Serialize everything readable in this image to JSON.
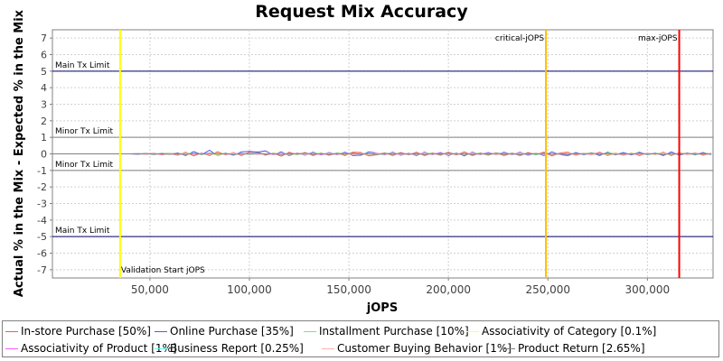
{
  "chart_data": {
    "type": "line",
    "title": "Request Mix Accuracy",
    "xlabel": "jOPS",
    "ylabel": "Actual % in the Mix - Expected % in the Mix",
    "xlim": [
      1000,
      333000
    ],
    "ylim": [
      -7.5,
      7.5
    ],
    "x_ticks": [
      {
        "value": 50000,
        "label": "50,000"
      },
      {
        "value": 100000,
        "label": "100,000"
      },
      {
        "value": 150000,
        "label": "150,000"
      },
      {
        "value": 200000,
        "label": "200,000"
      },
      {
        "value": 250000,
        "label": "250,000"
      },
      {
        "value": 300000,
        "label": "300,000"
      }
    ],
    "y_ticks": [
      {
        "value": 7,
        "label": "7"
      },
      {
        "value": 6,
        "label": "6"
      },
      {
        "value": 5,
        "label": "5"
      },
      {
        "value": 4,
        "label": "4"
      },
      {
        "value": 3,
        "label": "3"
      },
      {
        "value": 2,
        "label": "2"
      },
      {
        "value": 1,
        "label": "1"
      },
      {
        "value": 0,
        "label": "0"
      },
      {
        "value": -1,
        "label": "-1"
      },
      {
        "value": -2,
        "label": "-2"
      },
      {
        "value": -3,
        "label": "-3"
      },
      {
        "value": -4,
        "label": "-4"
      },
      {
        "value": -5,
        "label": "-5"
      },
      {
        "value": -6,
        "label": "-6"
      },
      {
        "value": -7,
        "label": "-7"
      }
    ],
    "grid": true,
    "legend_position": "bottom",
    "horizontal_markers": [
      {
        "value": 5,
        "label": "Main Tx Limit",
        "color": "#000066"
      },
      {
        "value": 1,
        "label": "Minor Tx Limit",
        "color": "#808080"
      },
      {
        "value": -1,
        "label": "Minor Tx Limit",
        "color": "#808080"
      },
      {
        "value": -5,
        "label": "Main Tx Limit",
        "color": "#000066"
      }
    ],
    "vertical_markers": [
      {
        "value": 35000,
        "label": "Validation Start jOPS",
        "color": "#ffff00"
      },
      {
        "value": 249000,
        "label": "critical-jOPS",
        "color": "#ffc000"
      },
      {
        "value": 316000,
        "label": "max-jOPS",
        "color": "#ff0000"
      }
    ],
    "x": [
      1000,
      4000,
      7000,
      10000,
      13000,
      16000,
      19000,
      22000,
      25000,
      28000,
      31000,
      34000,
      37000,
      40000,
      44000,
      48000,
      52000,
      56000,
      60000,
      64000,
      68000,
      72000,
      76000,
      80000,
      84000,
      88000,
      92000,
      96000,
      100000,
      104000,
      108000,
      112000,
      116000,
      120000,
      124000,
      128000,
      132000,
      136000,
      140000,
      144000,
      148000,
      152000,
      156000,
      160000,
      164000,
      168000,
      172000,
      176000,
      180000,
      184000,
      188000,
      192000,
      196000,
      200000,
      204000,
      208000,
      212000,
      216000,
      220000,
      224000,
      228000,
      232000,
      236000,
      240000,
      244000,
      248000,
      252000,
      256000,
      260000,
      264000,
      268000,
      272000,
      276000,
      280000,
      284000,
      288000,
      292000,
      296000,
      300000,
      304000,
      308000,
      312000,
      316000,
      320000,
      324000,
      328000,
      332000
    ],
    "series": [
      {
        "name": "In-store Purchase [50%]",
        "color": "#ff5555",
        "values": [
          0,
          0,
          0,
          0,
          0,
          0,
          0,
          0,
          0,
          0,
          0,
          0,
          0,
          0,
          0.02,
          -0.03,
          0.04,
          -0.05,
          0.03,
          -0.08,
          0.1,
          -0.12,
          0.05,
          -0.1,
          0.13,
          -0.06,
          0.08,
          -0.1,
          0.1,
          0.12,
          -0.08,
          0.05,
          -0.14,
          0.1,
          -0.05,
          0.08,
          -0.1,
          0.06,
          -0.08,
          0.05,
          -0.1,
          0.1,
          0.08,
          -0.12,
          -0.05,
          0.06,
          -0.1,
          0.08,
          -0.05,
          0.1,
          -0.1,
          0.05,
          -0.08,
          0.1,
          -0.06,
          0.12,
          -0.1,
          0.05,
          -0.08,
          0.06,
          -0.1,
          0.05,
          -0.1,
          0.08,
          -0.05,
          0.1,
          -0.12,
          0.05,
          0.1,
          -0.08,
          0.05,
          -0.06,
          0.1,
          -0.1,
          0.05,
          -0.08,
          0.06,
          -0.1,
          0.05,
          -0.05,
          0.1,
          -0.1,
          0.08,
          -0.05,
          0.06,
          -0.08,
          0.05
        ]
      },
      {
        "name": "Online Purchase [35%]",
        "color": "#5555ff",
        "values": [
          0,
          0,
          0,
          0,
          0,
          0,
          0,
          0,
          0,
          0,
          0,
          0,
          0,
          0,
          -0.02,
          0.03,
          -0.04,
          0.05,
          -0.03,
          0.06,
          -0.1,
          0.14,
          -0.05,
          0.22,
          -0.12,
          0.06,
          -0.08,
          0.12,
          0.15,
          0.1,
          0.18,
          -0.05,
          0.12,
          -0.1,
          0.05,
          -0.08,
          0.1,
          -0.06,
          0.08,
          -0.05,
          0.1,
          -0.1,
          -0.08,
          0.12,
          0.05,
          -0.06,
          0.1,
          -0.08,
          0.05,
          -0.1,
          0.1,
          -0.05,
          0.08,
          -0.1,
          0.06,
          -0.12,
          0.1,
          -0.05,
          0.08,
          -0.06,
          0.1,
          -0.05,
          0.1,
          -0.08,
          0.05,
          -0.1,
          0.12,
          -0.05,
          -0.1,
          0.08,
          -0.05,
          0.06,
          -0.1,
          0.1,
          -0.05,
          0.08,
          -0.06,
          0.1,
          -0.05,
          0.05,
          -0.1,
          0.12,
          -0.08,
          0.05,
          -0.06,
          0.08,
          -0.05
        ]
      },
      {
        "name": "Installment Purchase [10%]",
        "color": "#55ff55",
        "values": [
          0,
          0,
          0,
          0,
          0,
          0,
          0,
          0,
          0,
          0,
          0,
          0,
          0,
          0,
          0.01,
          0.02,
          -0.02,
          0.03,
          0.04,
          -0.03,
          0.05,
          0.02,
          -0.04,
          0.03,
          0.05,
          -0.02,
          0.03,
          -0.04,
          0.02,
          0.05,
          -0.03,
          0.04,
          0.02,
          -0.05,
          0.03,
          -0.02,
          0.04,
          0.02,
          -0.03,
          0.05,
          0.02,
          -0.04,
          0.03,
          0.02,
          -0.05,
          0.03,
          0.04,
          -0.02,
          0.03,
          -0.04,
          0.05,
          0.02,
          -0.03,
          0.04,
          0.02,
          -0.05,
          0.03,
          0.02,
          -0.04,
          0.05,
          0.02,
          -0.03,
          0.04,
          0.02,
          -0.05,
          0.03,
          0.02,
          -0.04,
          0.05,
          -0.02,
          0.03,
          0.04,
          -0.02,
          0.05,
          0.03,
          -0.04,
          0.02,
          0.05,
          -0.03,
          0.02,
          0.04,
          -0.05,
          0.03,
          0.02,
          -0.04,
          0.03,
          0.02
        ]
      },
      {
        "name": "Associativity of Category [0.1%]",
        "color": "#ffff55",
        "values": [
          0,
          0,
          0,
          0,
          0,
          0,
          0,
          0,
          0,
          0,
          0,
          0,
          0,
          0,
          0,
          0.01,
          -0.01,
          0.02,
          -0.02,
          0.03,
          -0.05,
          0.02,
          -0.03,
          0.04,
          -0.1,
          0.05,
          -0.02,
          0.03,
          -0.04,
          0.02,
          -0.03,
          0.05,
          -0.02,
          0.03,
          -0.05,
          0.02,
          -0.03,
          0.04,
          -0.02,
          0.03,
          -0.04,
          0.02,
          0.03,
          -0.05,
          0.02,
          -0.03,
          0.04,
          -0.02,
          0.03,
          -0.04,
          0.05,
          -0.02,
          0.03,
          -0.04,
          0.02,
          -0.03,
          0.05,
          -0.02,
          0.03,
          -0.04,
          0.02,
          -0.03,
          0.04,
          -0.02,
          0.05,
          -0.03,
          0.02,
          -0.04,
          0.03,
          -0.02,
          0.04,
          -0.03,
          0.02,
          -0.05,
          0.03,
          -0.02,
          0.04,
          -0.03,
          0.02,
          -0.04,
          0.05,
          -0.02,
          0.03,
          -0.04,
          0.02,
          -0.03,
          0.02
        ]
      },
      {
        "name": "Associativity of Product [1%]",
        "color": "#ff55ff",
        "values": [
          0,
          0,
          0,
          0,
          0,
          0,
          0,
          0,
          0,
          0,
          0,
          0,
          0,
          0,
          0,
          -0.01,
          0.01,
          -0.02,
          0.02,
          -0.01,
          0.02,
          -0.03,
          0.02,
          -0.01,
          0.03,
          -0.02,
          0.01,
          -0.03,
          0.02,
          -0.01,
          0.02,
          -0.03,
          0.01,
          -0.02,
          0.03,
          -0.01,
          0.02,
          -0.02,
          0.01,
          -0.03,
          0.02,
          -0.01,
          0.02,
          -0.02,
          0.03,
          -0.01,
          0.02,
          -0.03,
          0.01,
          -0.02,
          0.02,
          -0.01,
          0.03,
          -0.02,
          0.01,
          -0.02,
          0.03,
          -0.01,
          0.02,
          -0.03,
          0.01,
          -0.02,
          0.02,
          -0.01,
          0.03,
          -0.02,
          0.01,
          -0.03,
          0.02,
          -0.01,
          0.02,
          -0.02,
          0.03,
          -0.01,
          0.02,
          -0.03,
          0.01,
          -0.02,
          0.02,
          -0.01,
          0.03,
          -0.02,
          0.01,
          -0.02,
          0.02,
          -0.01,
          0.02
        ]
      },
      {
        "name": "Business Report [0.25%]",
        "color": "#55ffff",
        "values": [
          0,
          0,
          0,
          0,
          0,
          0,
          0,
          0,
          0,
          0,
          0,
          0,
          0,
          0,
          0,
          0.01,
          -0.01,
          0.01,
          -0.02,
          0.02,
          -0.01,
          0.03,
          -0.02,
          0.01,
          -0.02,
          0.03,
          -0.01,
          0.02,
          -0.03,
          0.01,
          -0.02,
          0.02,
          -0.01,
          0.03,
          -0.02,
          0.01,
          -0.03,
          0.02,
          -0.01,
          0.02,
          -0.02,
          0.03,
          -0.01,
          0.02,
          -0.03,
          0.01,
          -0.02,
          0.02,
          -0.01,
          0.03,
          -0.02,
          0.01,
          -0.02,
          0.03,
          -0.01,
          0.02,
          -0.03,
          0.01,
          -0.02,
          0.02,
          -0.01,
          0.03,
          -0.02,
          0.01,
          -0.03,
          0.02,
          -0.01,
          0.02,
          -0.02,
          0.03,
          -0.01,
          0.02,
          -0.03,
          0.01,
          -0.02,
          0.02,
          -0.01,
          0.03,
          -0.02,
          0.01,
          -0.02,
          0.03,
          -0.01,
          0.02,
          -0.03,
          0.01,
          -0.02
        ]
      },
      {
        "name": "Customer Buying Behavior [1%]",
        "color": "#ffafaf",
        "values": [
          0,
          0,
          0,
          0,
          0,
          0,
          0,
          0,
          0,
          0,
          0,
          0,
          0,
          0,
          0.01,
          -0.02,
          0.02,
          -0.01,
          0.03,
          -0.02,
          0.04,
          -0.03,
          0.02,
          -0.04,
          0.03,
          -0.02,
          0.05,
          -0.03,
          0.02,
          -0.04,
          0.03,
          -0.02,
          0.04,
          -0.03,
          0.02,
          -0.05,
          0.03,
          -0.02,
          0.04,
          -0.03,
          0.02,
          -0.04,
          0.03,
          -0.02,
          0.05,
          -0.03,
          0.02,
          -0.04,
          0.03,
          -0.02,
          0.04,
          -0.03,
          0.02,
          -0.05,
          0.03,
          -0.02,
          0.04,
          -0.03,
          0.02,
          -0.04,
          0.03,
          -0.02,
          0.05,
          -0.03,
          0.02,
          -0.04,
          0.03,
          -0.02,
          0.04,
          -0.03,
          0.02,
          -0.05,
          0.03,
          -0.02,
          0.04,
          -0.03,
          0.02,
          -0.04,
          0.03,
          -0.02,
          0.05,
          -0.03,
          0.02,
          -0.04,
          0.03,
          -0.02,
          0.03
        ]
      },
      {
        "name": "Product Return [2.65%]",
        "color": "#808080",
        "values": [
          0,
          0,
          0,
          0,
          0,
          0,
          0,
          0,
          0,
          0,
          0,
          0,
          0,
          0,
          -0.01,
          0.02,
          -0.02,
          0.01,
          -0.03,
          0.02,
          -0.04,
          0.03,
          -0.02,
          0.04,
          -0.03,
          0.02,
          -0.05,
          0.03,
          -0.02,
          0.04,
          -0.03,
          0.02,
          -0.04,
          0.03,
          -0.02,
          0.05,
          -0.03,
          0.02,
          -0.04,
          0.03,
          -0.02,
          0.04,
          -0.03,
          0.02,
          -0.05,
          0.03,
          -0.02,
          0.04,
          -0.03,
          0.02,
          -0.04,
          0.03,
          -0.02,
          0.05,
          -0.03,
          0.02,
          -0.04,
          0.03,
          -0.02,
          0.04,
          -0.03,
          0.02,
          -0.05,
          0.03,
          -0.02,
          0.04,
          -0.03,
          0.02,
          -0.04,
          0.03,
          -0.02,
          0.05,
          -0.03,
          0.02,
          -0.04,
          0.03,
          -0.02,
          0.04,
          -0.03,
          0.02,
          -0.05,
          0.03,
          -0.02,
          0.04,
          -0.03,
          0.02,
          -0.03
        ]
      }
    ]
  }
}
